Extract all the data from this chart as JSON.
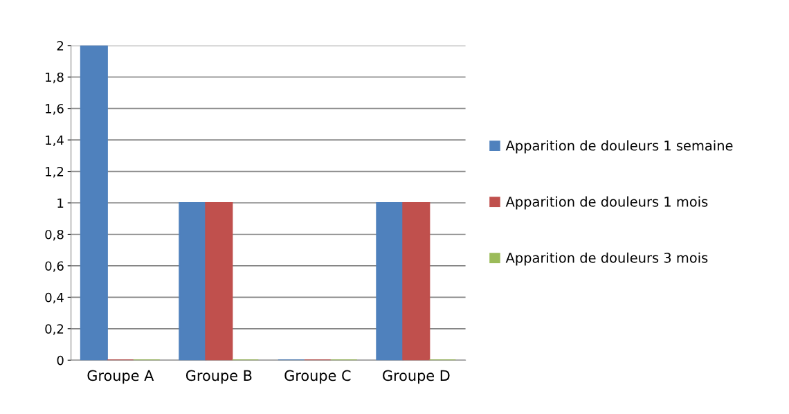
{
  "chart_data": {
    "type": "bar",
    "categories": [
      "Groupe A",
      "Groupe B",
      "Groupe C",
      "Groupe D"
    ],
    "series": [
      {
        "name": "Apparition de douleurs 1 semaine",
        "color": "#4f81bd",
        "values": [
          2,
          1,
          0,
          1
        ]
      },
      {
        "name": "Apparition de douleurs 1 mois",
        "color": "#c0504d",
        "values": [
          0,
          1,
          0,
          1
        ]
      },
      {
        "name": "Apparition de douleurs 3 mois",
        "color": "#9bbb59",
        "values": [
          0,
          0,
          0,
          0
        ]
      }
    ],
    "ylim": [
      0,
      2
    ],
    "yticks": [
      0,
      {
        "value": 0.2,
        "label": "0,2"
      },
      {
        "value": 0.4,
        "label": "0,4"
      },
      {
        "value": 0.6,
        "label": "0,6"
      },
      {
        "value": 0.8,
        "label": "0,8"
      },
      1,
      {
        "value": 1.2,
        "label": "1,2"
      },
      {
        "value": 1.4,
        "label": "1,4"
      },
      {
        "value": 1.6,
        "label": "1,6"
      },
      {
        "value": 1.8,
        "label": "1,8"
      },
      2
    ],
    "grid": "y",
    "legend": "right"
  }
}
